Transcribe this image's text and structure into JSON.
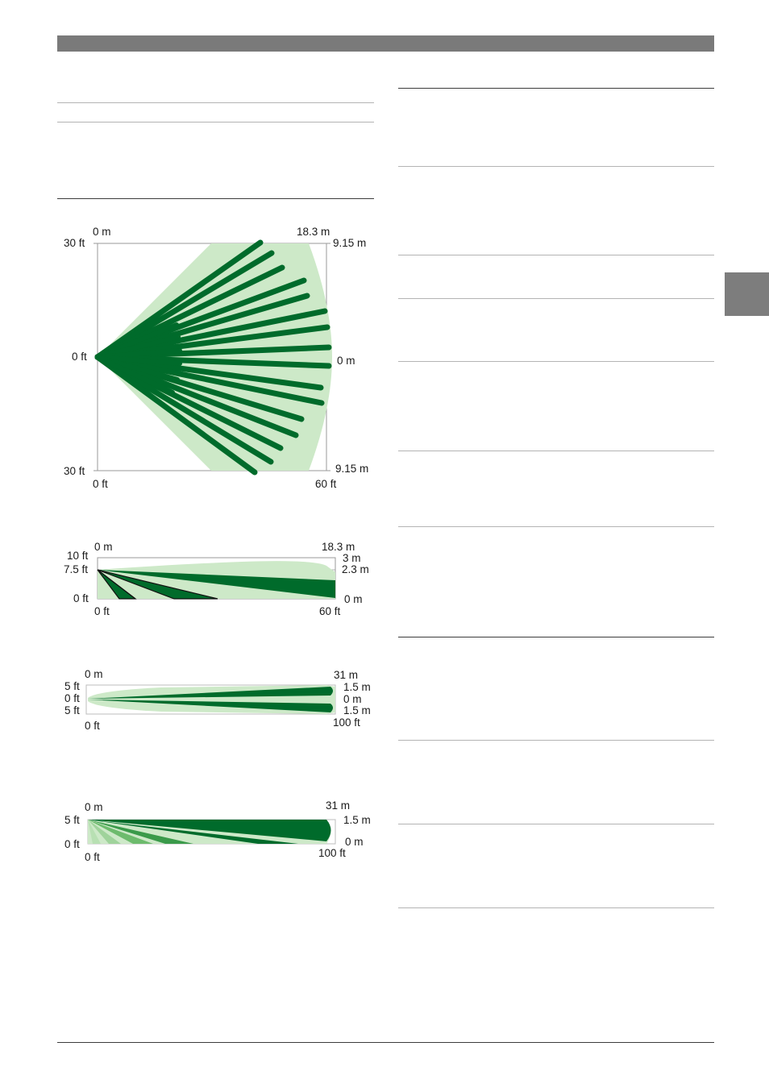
{
  "colors": {
    "header_bar": "#7a7a7a",
    "side_tab": "#7d7d7d",
    "zone_light": "#cde9c8",
    "zone_dark": "#006b2b",
    "zone_mid": "#3a9a4a",
    "frame": "#9a9a9a"
  },
  "diagrams": {
    "top_view": {
      "top_left_m": "0 m",
      "top_right_m": "18.3 m",
      "right_top_m": "9.15 m",
      "left_top_ft": "30 ft",
      "left_mid_ft": "0 ft",
      "right_mid_m": "0 m",
      "left_bottom_ft": "30 ft",
      "right_bottom_m": "9.15 m",
      "bottom_left_ft": "0 ft",
      "bottom_right_ft": "60 ft"
    },
    "side_view": {
      "top_left_m": "0 m",
      "top_right_m": "18.3 m",
      "left_10ft": "10 ft",
      "left_7_5ft": "7.5 ft",
      "left_0ft": "0 ft",
      "right_3m": "3 m",
      "right_2_3m": "2.3 m",
      "right_0m": "0 m",
      "bottom_left_ft": "0 ft",
      "bottom_right_ft": "60 ft"
    },
    "long_range_top": {
      "top_left_m": "0 m",
      "top_right_m": "31 m",
      "left_5ft_top": "5 ft",
      "left_0ft": "0 ft",
      "left_5ft_bottom": "5 ft",
      "right_1_5m_top": "1.5 m",
      "right_0m": "0 m",
      "right_1_5m_bottom": "1.5 m",
      "bottom_left_ft": "0 ft",
      "bottom_right_ft": "100 ft"
    },
    "long_range_side": {
      "top_left_m": "0 m",
      "top_right_m": "31 m",
      "left_5ft": "5 ft",
      "left_0ft": "0 ft",
      "right_1_5m": "1.5 m",
      "right_0m": "0 m",
      "bottom_left_ft": "0 ft",
      "bottom_right_ft": "100 ft"
    }
  }
}
